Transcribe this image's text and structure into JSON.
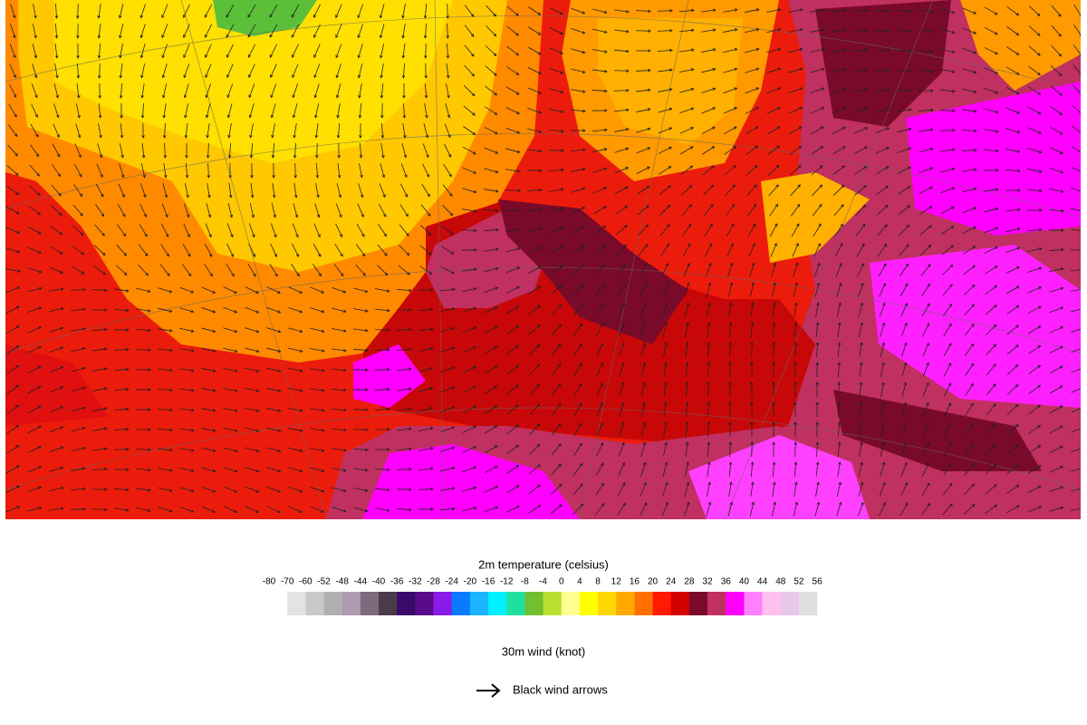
{
  "legend": {
    "temperature": {
      "title": "2m temperature (celsius)",
      "ticks": [
        -80,
        -70,
        -60,
        -52,
        -48,
        -44,
        -40,
        -36,
        -32,
        -28,
        -24,
        -20,
        -16,
        -12,
        -8,
        -4,
        0,
        4,
        8,
        12,
        16,
        20,
        24,
        28,
        32,
        36,
        40,
        44,
        48,
        52,
        56
      ],
      "colors": [
        "#ffffff",
        "#e3e3e3",
        "#c8c8c8",
        "#b0b0b0",
        "#b09ab0",
        "#7d6a7d",
        "#4a3a4a",
        "#3a0a6a",
        "#5a0a8a",
        "#8a1aea",
        "#0a7aff",
        "#1ab4ff",
        "#00f0ff",
        "#20e0a0",
        "#70c030",
        "#b8e030",
        "#ffff90",
        "#ffff00",
        "#ffd700",
        "#ffaa00",
        "#ff7000",
        "#ff1a00",
        "#d40000",
        "#7a0a2a",
        "#c03060",
        "#ff00ff",
        "#ff80ff",
        "#ffc0f0",
        "#e8c8e8",
        "#e0e0e0"
      ]
    },
    "wind": {
      "title": "30m wind (knot)",
      "arrow_label": "Black wind arrows"
    }
  }
}
